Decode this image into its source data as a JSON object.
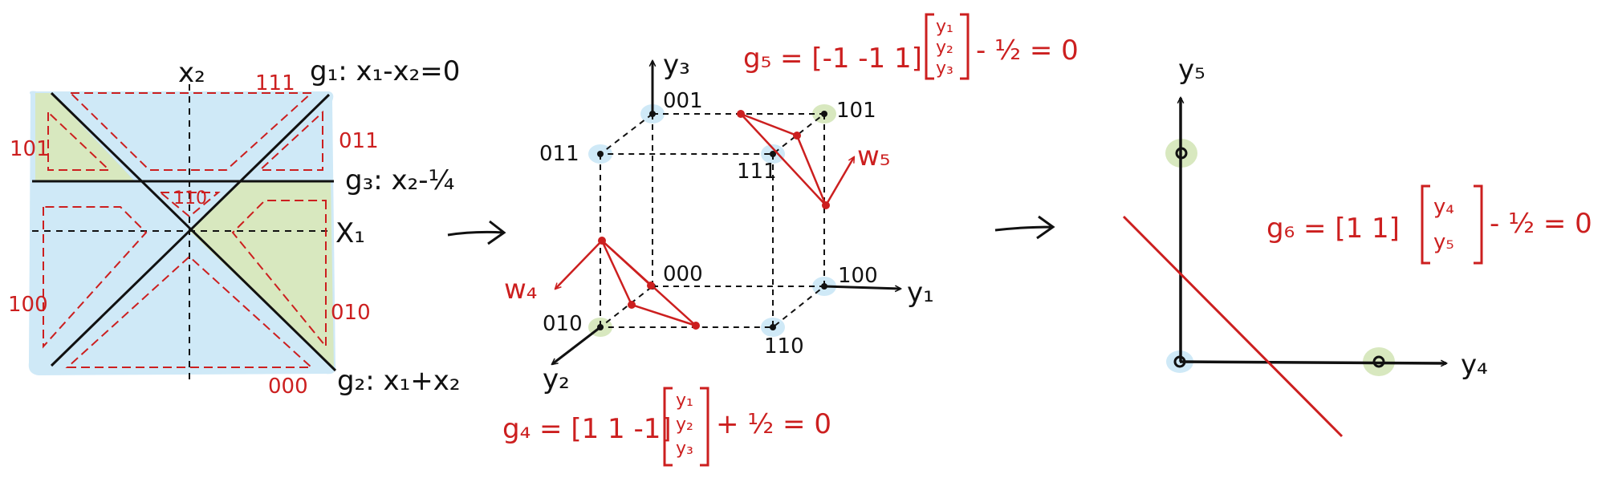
{
  "colors": {
    "region_blue": "#cfe9f7",
    "region_green": "#d8e8bf",
    "ink_black": "#111111",
    "ink_red": "#cc1f1f"
  },
  "panel1": {
    "axis_x1": "X₁",
    "axis_x2": "x₂",
    "g1_label": "g₁: x₁-x₂=0",
    "g2_label": "g₂: x₁+x₂",
    "g3_label": "g₃: x₂-¼",
    "region_codes": {
      "top": "111",
      "right": "011",
      "right_lower": "010",
      "bottom": "000",
      "left": "100",
      "left_upper": "101",
      "center": "110"
    }
  },
  "panel2": {
    "axis_y1": "y₁",
    "axis_y2": "y₂",
    "axis_y3": "y₃",
    "vertices": {
      "v000": "000",
      "v001": "001",
      "v010": "010",
      "v011": "011",
      "v100": "100",
      "v101": "101",
      "v110": "110",
      "v111": "111"
    },
    "w4_label": "w₄",
    "w5_label": "w₅",
    "g4_lhs": "g₄ = [1  1  -1]",
    "g4_vec": [
      "y₁",
      "y₂",
      "y₃"
    ],
    "g4_rhs": "+ ½ = 0",
    "g5_lhs": "g₅ = [-1  -1  1]",
    "g5_vec": [
      "y₁",
      "y₂",
      "y₃"
    ],
    "g5_rhs": "- ½ = 0"
  },
  "panel3": {
    "axis_y4": "y₄",
    "axis_y5": "y₅",
    "g6_lhs": "g₆ = [1   1]",
    "g6_vec": [
      "y₄",
      "y₅"
    ],
    "g6_rhs": "- ½  =  0"
  }
}
